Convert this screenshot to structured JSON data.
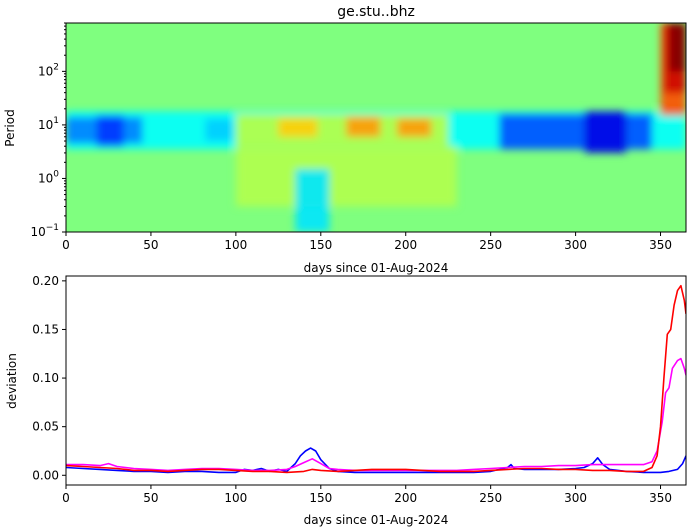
{
  "chart_data": [
    {
      "type": "heatmap",
      "title": "ge.stu..bhz",
      "xlabel": "days since 01-Aug-2024",
      "ylabel": "Period",
      "xlim": [
        0,
        365
      ],
      "ylim": [
        0.1,
        800
      ],
      "yscale": "log",
      "xticks": [
        0,
        50,
        100,
        150,
        200,
        250,
        300,
        350
      ],
      "yticks": [
        {
          "value": 0.1,
          "base": "10",
          "exp": "−1"
        },
        {
          "value": 1,
          "base": "10",
          "exp": "0"
        },
        {
          "value": 10,
          "base": "10",
          "exp": "1"
        },
        {
          "value": 100,
          "base": "10",
          "exp": "2"
        }
      ],
      "colormap": "jet",
      "features": [
        {
          "x": [
            0,
            365
          ],
          "y": [
            3.5,
            18
          ],
          "level": -0.25
        },
        {
          "x": [
            0,
            45
          ],
          "y": [
            4.5,
            14
          ],
          "level": -0.5
        },
        {
          "x": [
            18,
            34
          ],
          "y": [
            4,
            15
          ],
          "level": -0.65
        },
        {
          "x": [
            82,
            98
          ],
          "y": [
            5,
            13
          ],
          "level": -0.35
        },
        {
          "x": [
            100,
            225
          ],
          "y": [
            4,
            16
          ],
          "level": 0.12
        },
        {
          "x": [
            125,
            148
          ],
          "y": [
            6,
            13
          ],
          "level": 0.35
        },
        {
          "x": [
            165,
            185
          ],
          "y": [
            6,
            14
          ],
          "level": 0.45
        },
        {
          "x": [
            195,
            215
          ],
          "y": [
            6,
            13
          ],
          "level": 0.45
        },
        {
          "x": [
            255,
            345
          ],
          "y": [
            3.5,
            16
          ],
          "level": -0.6
        },
        {
          "x": [
            305,
            330
          ],
          "y": [
            3,
            18
          ],
          "level": -0.8
        },
        {
          "x": [
            100,
            230
          ],
          "y": [
            0.3,
            4
          ],
          "level": 0.1
        },
        {
          "x": [
            135,
            155
          ],
          "y": [
            0.1,
            1.5
          ],
          "level": -0.3
        },
        {
          "x": [
            350,
            365
          ],
          "y": [
            15,
            800
          ],
          "level": 0.6
        },
        {
          "x": [
            352,
            365
          ],
          "y": [
            40,
            800
          ],
          "level": 0.85
        },
        {
          "x": [
            355,
            365
          ],
          "y": [
            100,
            800
          ],
          "level": 1.0
        }
      ]
    },
    {
      "type": "line",
      "xlabel": "days since 01-Aug-2024",
      "ylabel": "deviation",
      "xlim": [
        0,
        365
      ],
      "ylim": [
        -0.01,
        0.205
      ],
      "xticks": [
        0,
        50,
        100,
        150,
        200,
        250,
        300,
        350
      ],
      "yticks": [
        "0.00",
        "0.05",
        "0.10",
        "0.15",
        "0.20"
      ],
      "grid": false,
      "series": [
        {
          "color": "#0000ff",
          "x": [
            0,
            10,
            20,
            30,
            40,
            50,
            60,
            70,
            80,
            90,
            100,
            105,
            110,
            115,
            120,
            125,
            130,
            135,
            138,
            141,
            144,
            147,
            150,
            155,
            160,
            170,
            180,
            190,
            200,
            210,
            220,
            230,
            240,
            250,
            260,
            262,
            264,
            270,
            280,
            290,
            300,
            305,
            310,
            313,
            316,
            320,
            330,
            340,
            350,
            355,
            360,
            363,
            365
          ],
          "y": [
            0.008,
            0.007,
            0.006,
            0.005,
            0.004,
            0.004,
            0.003,
            0.004,
            0.004,
            0.003,
            0.003,
            0.006,
            0.005,
            0.007,
            0.004,
            0.006,
            0.004,
            0.012,
            0.02,
            0.025,
            0.028,
            0.025,
            0.016,
            0.007,
            0.004,
            0.003,
            0.003,
            0.003,
            0.003,
            0.003,
            0.003,
            0.003,
            0.003,
            0.004,
            0.008,
            0.011,
            0.007,
            0.006,
            0.006,
            0.006,
            0.007,
            0.008,
            0.012,
            0.018,
            0.011,
            0.006,
            0.004,
            0.003,
            0.003,
            0.004,
            0.006,
            0.012,
            0.02
          ]
        },
        {
          "color": "#ff00ff",
          "x": [
            0,
            10,
            20,
            25,
            30,
            40,
            50,
            60,
            70,
            80,
            90,
            100,
            110,
            120,
            130,
            135,
            140,
            145,
            150,
            155,
            160,
            170,
            180,
            190,
            200,
            210,
            220,
            230,
            240,
            250,
            260,
            270,
            280,
            290,
            300,
            310,
            320,
            330,
            340,
            345,
            348,
            351,
            353,
            355,
            357,
            360,
            362,
            364,
            365
          ],
          "y": [
            0.011,
            0.011,
            0.01,
            0.012,
            0.009,
            0.007,
            0.006,
            0.005,
            0.006,
            0.007,
            0.007,
            0.006,
            0.005,
            0.005,
            0.006,
            0.009,
            0.013,
            0.017,
            0.012,
            0.007,
            0.006,
            0.005,
            0.005,
            0.005,
            0.005,
            0.005,
            0.005,
            0.005,
            0.006,
            0.007,
            0.008,
            0.009,
            0.009,
            0.01,
            0.01,
            0.011,
            0.011,
            0.011,
            0.011,
            0.014,
            0.025,
            0.055,
            0.085,
            0.09,
            0.11,
            0.118,
            0.12,
            0.11,
            0.103
          ]
        },
        {
          "color": "#ff0000",
          "x": [
            0,
            10,
            20,
            30,
            40,
            50,
            60,
            70,
            80,
            90,
            100,
            110,
            120,
            130,
            140,
            145,
            150,
            160,
            170,
            180,
            190,
            200,
            210,
            220,
            230,
            240,
            250,
            260,
            270,
            280,
            290,
            300,
            310,
            320,
            330,
            340,
            345,
            348,
            350,
            352,
            354,
            356,
            358,
            360,
            362,
            364,
            365
          ],
          "y": [
            0.01,
            0.009,
            0.008,
            0.007,
            0.005,
            0.005,
            0.004,
            0.005,
            0.006,
            0.006,
            0.005,
            0.004,
            0.004,
            0.003,
            0.004,
            0.006,
            0.005,
            0.004,
            0.005,
            0.006,
            0.006,
            0.006,
            0.005,
            0.004,
            0.004,
            0.004,
            0.005,
            0.006,
            0.007,
            0.007,
            0.006,
            0.006,
            0.005,
            0.005,
            0.004,
            0.004,
            0.008,
            0.02,
            0.05,
            0.1,
            0.145,
            0.15,
            0.175,
            0.19,
            0.195,
            0.18,
            0.166
          ]
        }
      ]
    }
  ]
}
